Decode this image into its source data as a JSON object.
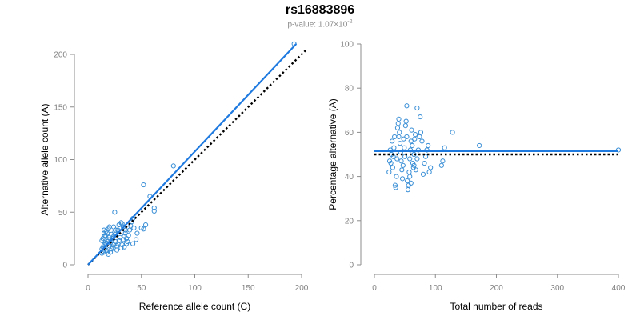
{
  "figure": {
    "title": "rs16883896",
    "subtitle_prefix": "p-value: 1.07×10",
    "subtitle_exponent": "-2"
  },
  "colors": {
    "points": "#3a8fd6",
    "fit_line": "#1f7ae0",
    "reference_line": "#000000",
    "axis": "#8c8c8c",
    "tick_text": "#7f7f7f"
  },
  "chart_data": [
    {
      "type": "scatter",
      "xlabel": "Reference allele count (C)",
      "ylabel": "Alternative allele count (A)",
      "xlim": [
        0,
        200
      ],
      "ylim": [
        0,
        200
      ],
      "xticks": [
        0,
        50,
        100,
        150,
        200
      ],
      "yticks": [
        0,
        50,
        100,
        150,
        200
      ],
      "grid": false,
      "fit_line": {
        "x": [
          0,
          195
        ],
        "y": [
          0,
          210
        ]
      },
      "reference_line": {
        "x": [
          0,
          205
        ],
        "y": [
          0,
          205
        ]
      },
      "points": [
        [
          13,
          11
        ],
        [
          14,
          13
        ],
        [
          15,
          12
        ],
        [
          13,
          15
        ],
        [
          14,
          17
        ],
        [
          15,
          19
        ],
        [
          16,
          21
        ],
        [
          13,
          23
        ],
        [
          14,
          25
        ],
        [
          16,
          27
        ],
        [
          17,
          14
        ],
        [
          18,
          12
        ],
        [
          19,
          16
        ],
        [
          20,
          18
        ],
        [
          17,
          20
        ],
        [
          18,
          22
        ],
        [
          19,
          24
        ],
        [
          20,
          26
        ],
        [
          16,
          28
        ],
        [
          15,
          30
        ],
        [
          21,
          12
        ],
        [
          22,
          15
        ],
        [
          23,
          17
        ],
        [
          24,
          19
        ],
        [
          21,
          21
        ],
        [
          22,
          23
        ],
        [
          23,
          25
        ],
        [
          24,
          27
        ],
        [
          22,
          29
        ],
        [
          25,
          31
        ],
        [
          17,
          32
        ],
        [
          19,
          34
        ],
        [
          26,
          22
        ],
        [
          27,
          18
        ],
        [
          28,
          20
        ],
        [
          29,
          23
        ],
        [
          30,
          26
        ],
        [
          26,
          29
        ],
        [
          28,
          33
        ],
        [
          30,
          35
        ],
        [
          31,
          16
        ],
        [
          32,
          19
        ],
        [
          33,
          24
        ],
        [
          34,
          27
        ],
        [
          35,
          30
        ],
        [
          36,
          25
        ],
        [
          37,
          22
        ],
        [
          38,
          28
        ],
        [
          39,
          33
        ],
        [
          40,
          37
        ],
        [
          41,
          41
        ],
        [
          42,
          44
        ],
        [
          43,
          35
        ],
        [
          36,
          20
        ],
        [
          34,
          17
        ],
        [
          32,
          39
        ],
        [
          29,
          38
        ],
        [
          25,
          50
        ],
        [
          27,
          14
        ],
        [
          19,
          10
        ],
        [
          52,
          76
        ],
        [
          58,
          65
        ],
        [
          62,
          54
        ],
        [
          62,
          51
        ],
        [
          54,
          38
        ],
        [
          50,
          35
        ],
        [
          46,
          30
        ],
        [
          45,
          24
        ],
        [
          80,
          94
        ],
        [
          52,
          34
        ],
        [
          42,
          20
        ],
        [
          31,
          40
        ],
        [
          193,
          210
        ],
        [
          24,
          36
        ],
        [
          20,
          36
        ],
        [
          15,
          33
        ],
        [
          18,
          30
        ],
        [
          26,
          33
        ],
        [
          35,
          33
        ],
        [
          33,
          36
        ]
      ]
    },
    {
      "type": "scatter",
      "xlabel": "Total number of reads",
      "ylabel": "Percentage alternative (A)",
      "xlim": [
        0,
        400
      ],
      "ylim": [
        0,
        100
      ],
      "xticks": [
        0,
        100,
        200,
        300,
        400
      ],
      "yticks": [
        0,
        20,
        40,
        60,
        80,
        100
      ],
      "grid": false,
      "fit_line": {
        "x": [
          0,
          400
        ],
        "y": [
          51.5,
          51.5
        ]
      },
      "reference_line": {
        "x": [
          0,
          400
        ],
        "y": [
          50,
          50
        ]
      },
      "points": [
        [
          24,
          42
        ],
        [
          25,
          47
        ],
        [
          26,
          52
        ],
        [
          27,
          46
        ],
        [
          28,
          50
        ],
        [
          29,
          56
        ],
        [
          30,
          44
        ],
        [
          31,
          49
        ],
        [
          32,
          53
        ],
        [
          33,
          58
        ],
        [
          34,
          36
        ],
        [
          35,
          35
        ],
        [
          36,
          40
        ],
        [
          37,
          48
        ],
        [
          38,
          62
        ],
        [
          39,
          64
        ],
        [
          40,
          66
        ],
        [
          41,
          60
        ],
        [
          42,
          55
        ],
        [
          43,
          51
        ],
        [
          44,
          47
        ],
        [
          45,
          43
        ],
        [
          46,
          39
        ],
        [
          47,
          45
        ],
        [
          48,
          57
        ],
        [
          49,
          53
        ],
        [
          50,
          49
        ],
        [
          51,
          63
        ],
        [
          52,
          65
        ],
        [
          53,
          58
        ],
        [
          54,
          38
        ],
        [
          55,
          34
        ],
        [
          56,
          36
        ],
        [
          57,
          42
        ],
        [
          58,
          48
        ],
        [
          59,
          52
        ],
        [
          60,
          56
        ],
        [
          61,
          61
        ],
        [
          62,
          54
        ],
        [
          63,
          46
        ],
        [
          64,
          44
        ],
        [
          65,
          50
        ],
        [
          66,
          57
        ],
        [
          67,
          59
        ],
        [
          68,
          43
        ],
        [
          70,
          48
        ],
        [
          72,
          52
        ],
        [
          74,
          58
        ],
        [
          76,
          60
        ],
        [
          78,
          56
        ],
        [
          80,
          41
        ],
        [
          82,
          46
        ],
        [
          84,
          49
        ],
        [
          86,
          52
        ],
        [
          88,
          54
        ],
        [
          90,
          42
        ],
        [
          92,
          44
        ],
        [
          70,
          71
        ],
        [
          75,
          67
        ],
        [
          53,
          72
        ],
        [
          110,
          45
        ],
        [
          112,
          47
        ],
        [
          115,
          53
        ],
        [
          128,
          60
        ],
        [
          172,
          54
        ],
        [
          400,
          52
        ],
        [
          58,
          40
        ],
        [
          60,
          37
        ],
        [
          65,
          45
        ],
        [
          40,
          58
        ]
      ]
    }
  ]
}
